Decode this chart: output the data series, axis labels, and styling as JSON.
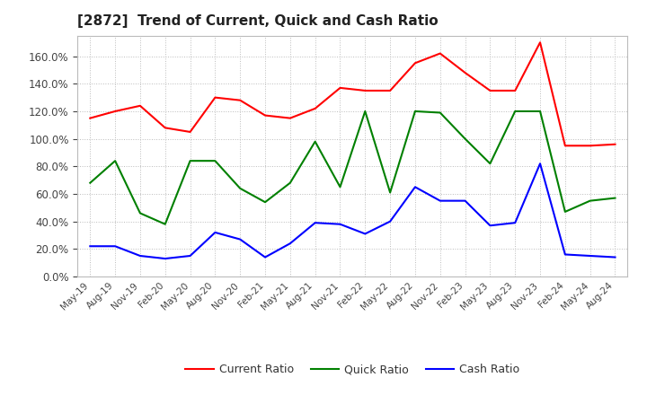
{
  "title": "[2872]  Trend of Current, Quick and Cash Ratio",
  "x_labels": [
    "May-19",
    "Aug-19",
    "Nov-19",
    "Feb-20",
    "May-20",
    "Aug-20",
    "Nov-20",
    "Feb-21",
    "May-21",
    "Aug-21",
    "Nov-21",
    "Feb-22",
    "May-22",
    "Aug-22",
    "Nov-22",
    "Feb-23",
    "May-23",
    "Aug-23",
    "Nov-23",
    "Feb-24",
    "May-24",
    "Aug-24"
  ],
  "current_ratio": [
    115,
    120,
    124,
    108,
    105,
    130,
    128,
    117,
    115,
    122,
    137,
    135,
    135,
    155,
    162,
    148,
    135,
    135,
    170,
    95,
    95,
    96
  ],
  "quick_ratio": [
    68,
    84,
    46,
    38,
    84,
    84,
    64,
    54,
    68,
    98,
    65,
    120,
    61,
    120,
    119,
    100,
    82,
    120,
    120,
    47,
    55,
    57
  ],
  "cash_ratio": [
    22,
    22,
    15,
    13,
    15,
    32,
    27,
    14,
    24,
    39,
    38,
    31,
    40,
    65,
    55,
    55,
    37,
    39,
    82,
    16,
    15,
    14
  ],
  "current_color": "#FF0000",
  "quick_color": "#008000",
  "cash_color": "#0000FF",
  "line_width": 1.5,
  "ylim": [
    0,
    175
  ],
  "yticks": [
    0,
    20,
    40,
    60,
    80,
    100,
    120,
    140,
    160
  ],
  "legend_labels": [
    "Current Ratio",
    "Quick Ratio",
    "Cash Ratio"
  ],
  "background_color": "#FFFFFF",
  "grid_color": "#AAAAAA"
}
